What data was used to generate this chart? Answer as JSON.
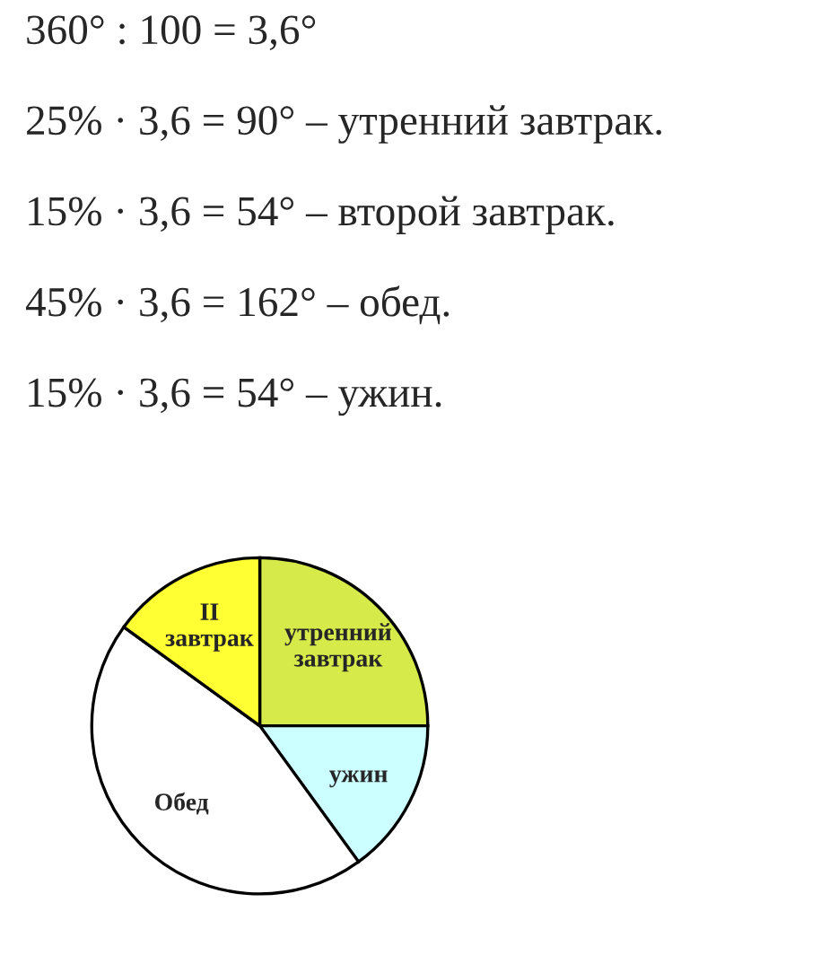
{
  "chart_data": {
    "type": "pie",
    "categories": [
      "утренний завтрак",
      "ужин",
      "Обед",
      "II завтрак"
    ],
    "values": [
      25,
      15,
      45,
      15
    ],
    "colors": [
      "#d6ea4a",
      "#ccffff",
      "#ffffff",
      "#ffff33"
    ],
    "annotations": [
      "360° : 100 = 3,6°",
      "25% · 3,6 = 90° – утренний завтрак.",
      "15% · 3,6 = 54° – второй завтрак.",
      "45% · 3,6 = 162° – обед.",
      "15% · 3,6 = 54° – ужин."
    ]
  }
}
